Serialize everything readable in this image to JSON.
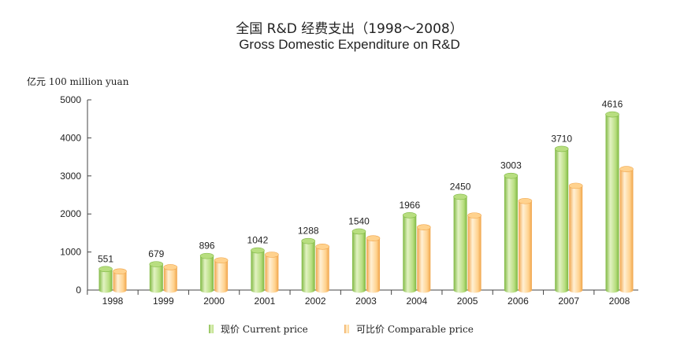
{
  "header": {
    "title_zh": "全国 R&D 经费支出（1998～2008）",
    "title_en": "Gross Domestic Expenditure on R&D",
    "unit_label": "亿元 100 million yuan"
  },
  "legend": {
    "current_label": "现价 Current price",
    "comparable_label": "可比价 Comparable price"
  },
  "colors": {
    "current_light": "#e2f2c2",
    "current_mid": "#b8de80",
    "current_dark": "#7fb842",
    "comparable_light": "#fff0d4",
    "comparable_mid": "#ffd28e",
    "comparable_dark": "#f0a44a"
  },
  "chart_data": {
    "type": "bar",
    "categories": [
      "1998",
      "1999",
      "2000",
      "2001",
      "2002",
      "2003",
      "2004",
      "2005",
      "2006",
      "2007",
      "2008"
    ],
    "series": [
      {
        "name": "现价 Current price",
        "values": [
          551,
          679,
          896,
          1042,
          1288,
          1540,
          1966,
          2450,
          3003,
          3710,
          4616
        ]
      },
      {
        "name": "可比价 Comparable price",
        "values": [
          490,
          600,
          780,
          930,
          1140,
          1360,
          1650,
          1960,
          2340,
          2740,
          3180
        ]
      }
    ],
    "data_labels": [
      "551",
      "679",
      "896",
      "1042",
      "1288",
      "1540",
      "1966",
      "2450",
      "3003",
      "3710",
      "4616"
    ],
    "yticks": [
      0,
      1000,
      2000,
      3000,
      4000,
      5000
    ],
    "ylim": [
      0,
      5000
    ],
    "grid": false,
    "legend_position": "bottom"
  }
}
